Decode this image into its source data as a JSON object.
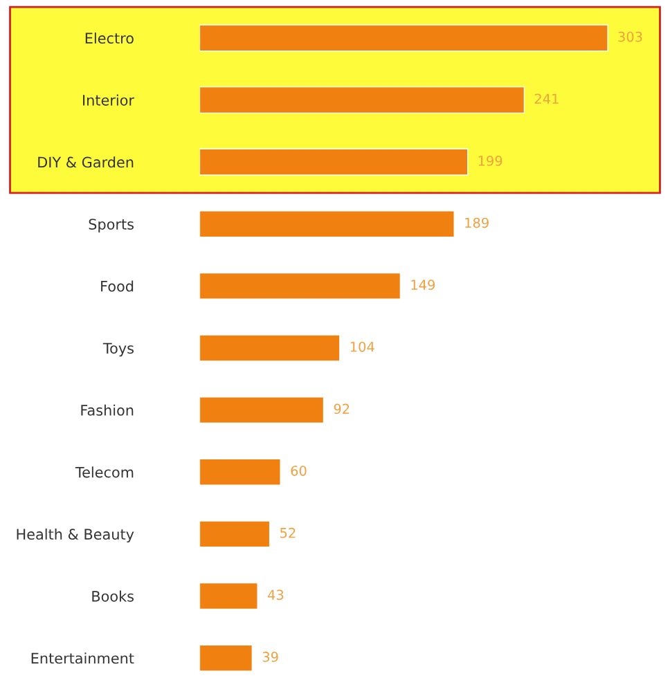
{
  "chart_data": {
    "type": "bar",
    "orientation": "horizontal",
    "categories": [
      "Electro",
      "Interior",
      "DIY & Garden",
      "Sports",
      "Food",
      "Toys",
      "Fashion",
      "Telecom",
      "Health & Beauty",
      "Books",
      "Entertainment"
    ],
    "values": [
      303,
      241,
      199,
      189,
      149,
      104,
      92,
      60,
      52,
      43,
      39
    ],
    "color": "#f0800f",
    "data_labels": true,
    "grid": false,
    "legend": false,
    "bands": [
      {
        "axis": "y",
        "from": "Electro",
        "to": "DIY & Garden",
        "color": "#fdfb3a"
      }
    ]
  }
}
